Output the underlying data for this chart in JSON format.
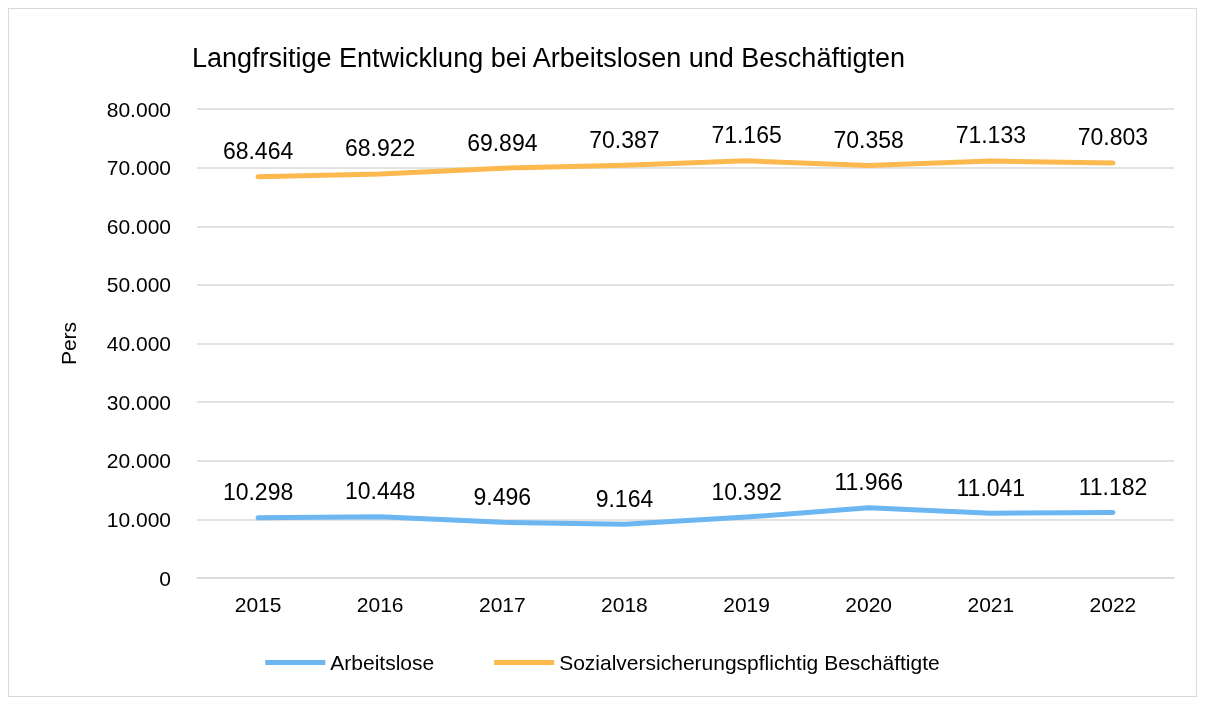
{
  "chart_data": {
    "type": "line",
    "title": "Langfrsitige Entwicklung bei Arbeitslosen und Beschäftigten",
    "ylabel": "Pers",
    "categories": [
      "2015",
      "2016",
      "2017",
      "2018",
      "2019",
      "2020",
      "2021",
      "2022"
    ],
    "series": [
      {
        "name": "Arbeitslose",
        "color": "#6cb6f2",
        "values": [
          10298,
          10448,
          9496,
          9164,
          10392,
          11966,
          11041,
          11182
        ],
        "value_labels": [
          "10.298",
          "10.448",
          "9.496",
          "9.164",
          "10.392",
          "11.966",
          "11.041",
          "11.182"
        ]
      },
      {
        "name": "Sozialversicherungspflichtig Beschäftigte",
        "color": "#fdb84e",
        "values": [
          68464,
          68922,
          69894,
          70387,
          71165,
          70358,
          71133,
          70803
        ],
        "value_labels": [
          "68.464",
          "68.922",
          "69.894",
          "70.387",
          "71.165",
          "70.358",
          "71.133",
          "70.803"
        ]
      }
    ],
    "ylim": [
      0,
      80000
    ],
    "yticks": [
      0,
      {
        "value": 10000,
        "label": "10.000"
      },
      {
        "value": 20000,
        "label": "20.000"
      },
      {
        "value": 30000,
        "label": "30.000"
      },
      {
        "value": 40000,
        "label": "40.000"
      },
      {
        "value": 50000,
        "label": "50.000"
      },
      {
        "value": 60000,
        "label": "60.000"
      },
      {
        "value": 70000,
        "label": "70.000"
      },
      {
        "value": 80000,
        "label": "80.000"
      }
    ],
    "grid": "y",
    "legend": "bottom",
    "marker": "none",
    "line_style": "solid"
  }
}
